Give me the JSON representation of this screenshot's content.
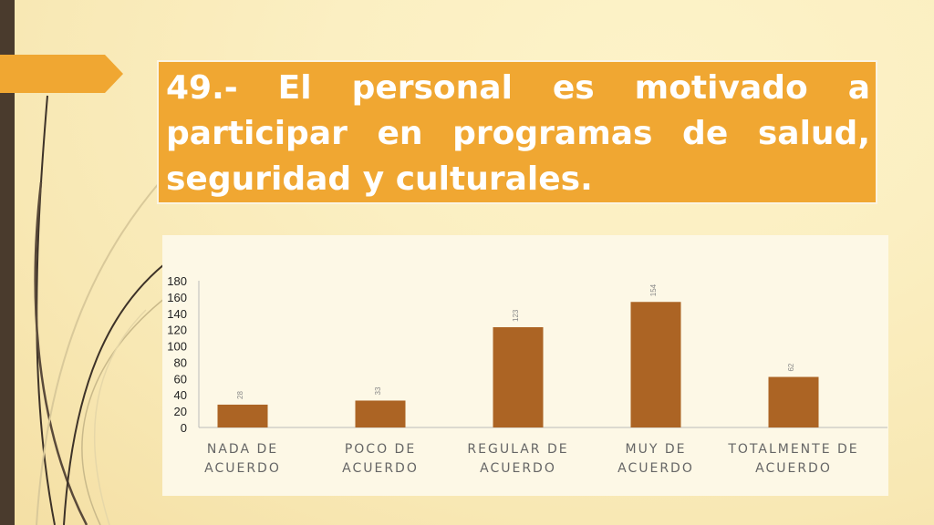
{
  "slide": {
    "title": "49.- El personal es motivado a participar en programas de salud, seguridad  y culturales."
  },
  "colors": {
    "title_bg": "#f0a732",
    "bar": "#ac6424",
    "left_bar": "#4a3b2d",
    "arrow": "#f0a732"
  },
  "chart_data": {
    "type": "bar",
    "categories": [
      [
        "NADA DE",
        "ACUERDO"
      ],
      [
        "POCO DE",
        "ACUERDO"
      ],
      [
        "REGULAR DE",
        "ACUERDO"
      ],
      [
        "MUY DE",
        "ACUERDO"
      ],
      [
        "TOTALMENTE DE",
        "ACUERDO"
      ]
    ],
    "values": [
      28,
      33,
      123,
      154,
      62
    ],
    "data_labels": [
      "28",
      "33",
      "123",
      "154",
      "62"
    ],
    "ylim": [
      0,
      180
    ],
    "yticks": [
      0,
      20,
      40,
      60,
      80,
      100,
      120,
      140,
      160,
      180
    ],
    "grid": false,
    "legend": "none"
  }
}
